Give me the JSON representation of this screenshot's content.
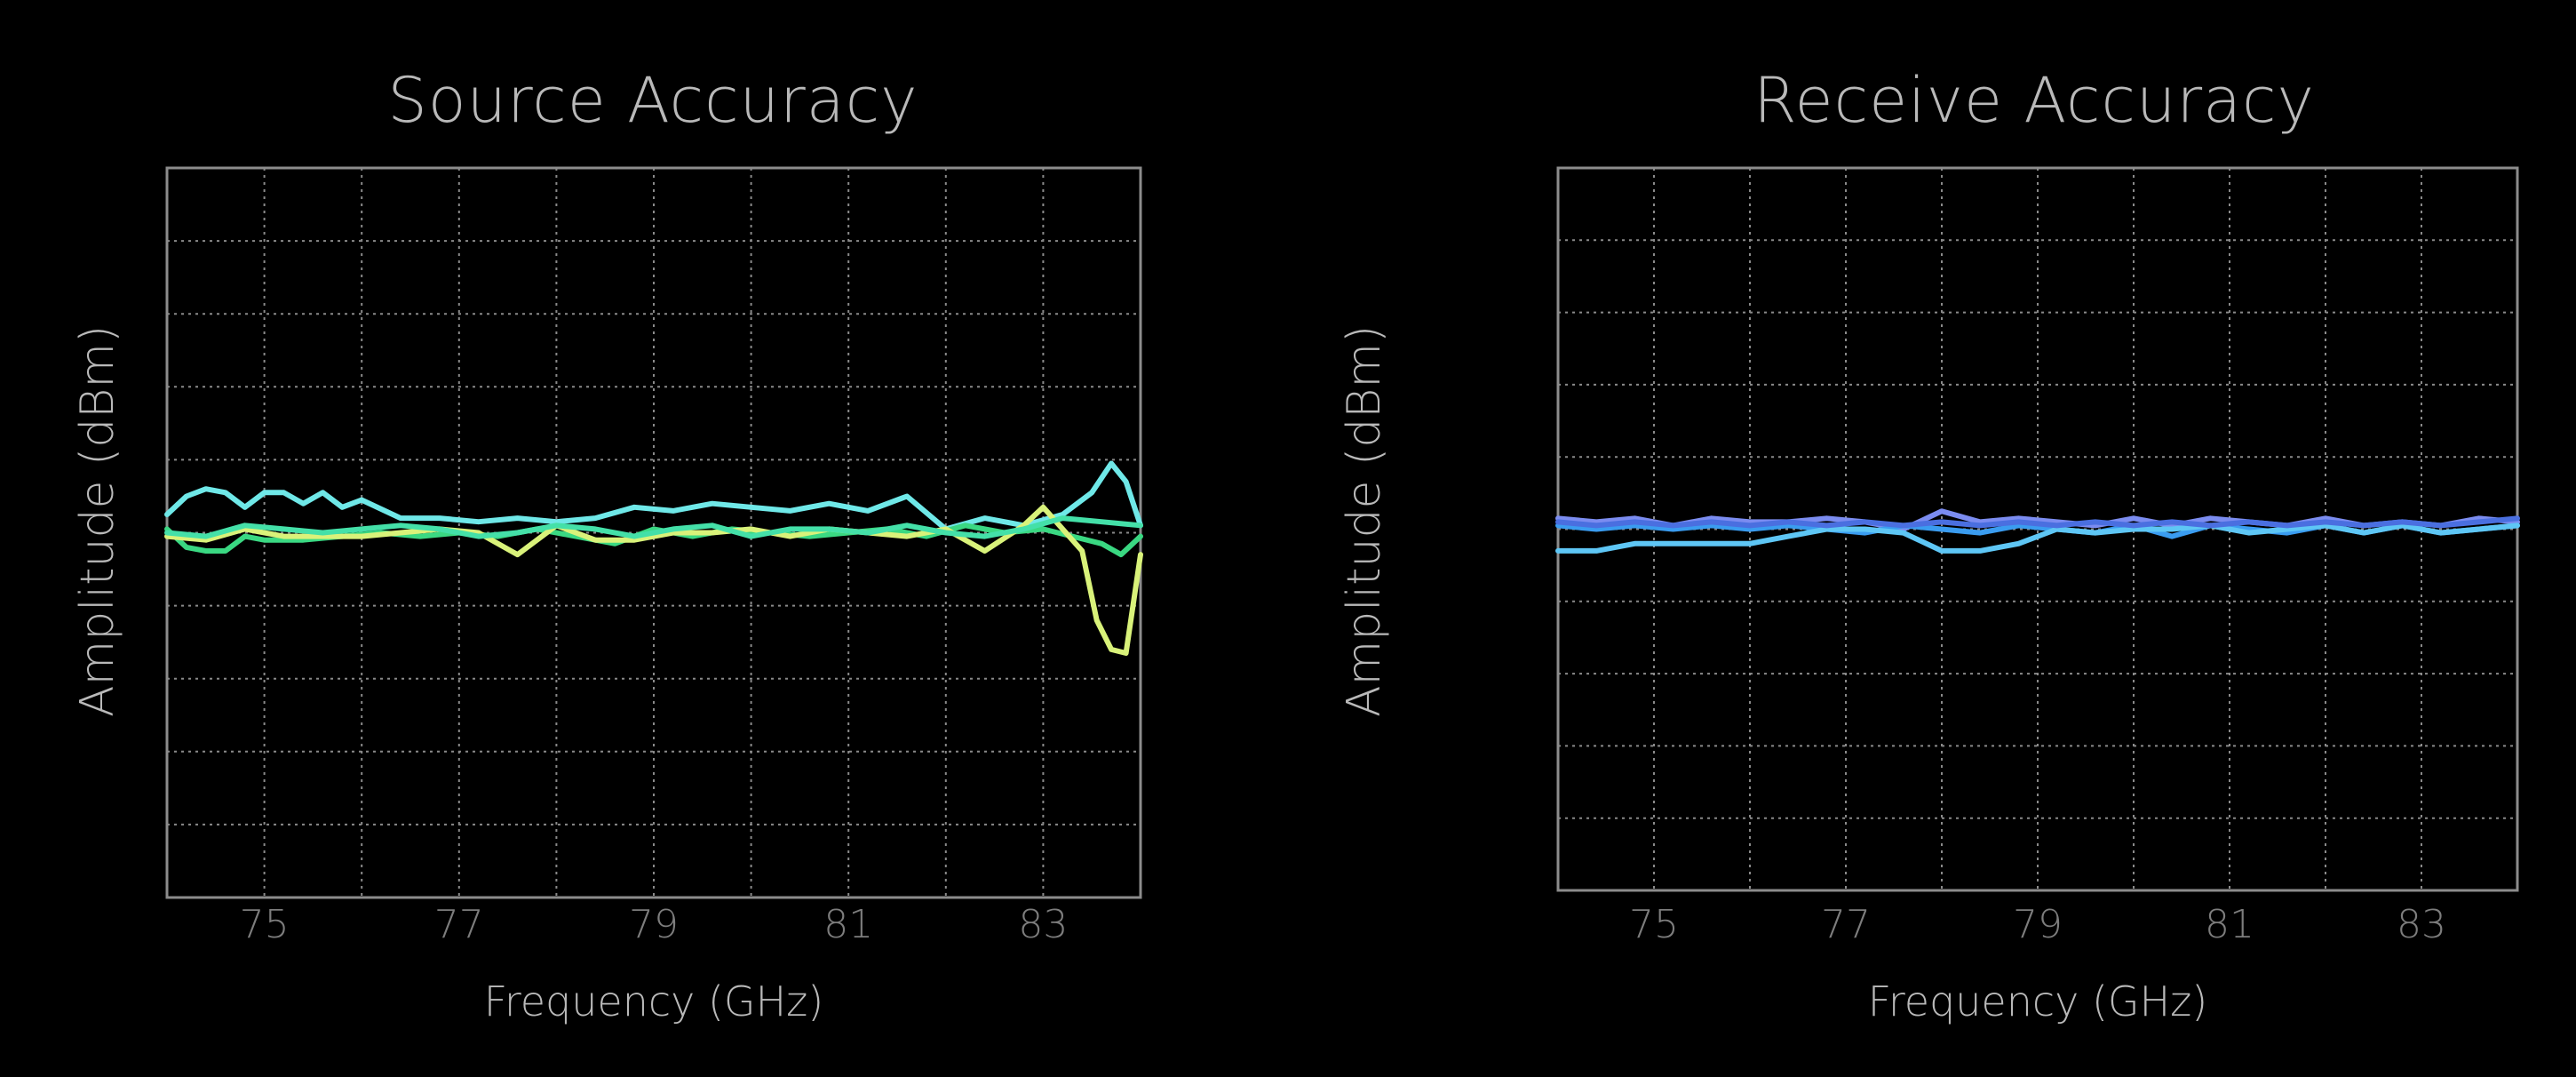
{
  "charts": [
    {
      "title": "Source Accuracy",
      "xlabel": "Frequency (GHz)",
      "ylabel": "Amplitude (dBm)"
    },
    {
      "title": "Receive Accuracy",
      "xlabel": "Frequency (GHz)",
      "ylabel": "Amplitude (dBm)"
    }
  ],
  "chart_data": [
    {
      "type": "line",
      "title": "Source Accuracy",
      "xlabel": "Frequency (GHz)",
      "ylabel": "Amplitude (dBm)",
      "xlim": [
        74,
        84
      ],
      "ylim": [
        -5,
        5
      ],
      "xticks": [
        75,
        77,
        79,
        81,
        83
      ],
      "grid": true,
      "colors": [
        "#6fe8e8",
        "#3ad882",
        "#d9f27a",
        "#44e0a8"
      ],
      "series": [
        {
          "x": [
            74,
            74.2,
            74.4,
            74.6,
            74.8,
            75,
            75.2,
            75.4,
            75.6,
            75.8,
            76,
            76.4,
            76.8,
            77.2,
            77.6,
            78,
            78.4,
            78.8,
            79.2,
            79.6,
            80,
            80.4,
            80.8,
            81.2,
            81.6,
            82,
            82.4,
            82.8,
            83.2,
            83.5,
            83.7,
            83.85,
            84
          ],
          "y": [
            0.25,
            0.5,
            0.6,
            0.55,
            0.35,
            0.55,
            0.55,
            0.4,
            0.55,
            0.35,
            0.45,
            0.2,
            0.2,
            0.15,
            0.2,
            0.15,
            0.2,
            0.35,
            0.3,
            0.4,
            0.35,
            0.3,
            0.4,
            0.3,
            0.5,
            0.05,
            0.2,
            0.1,
            0.25,
            0.55,
            0.95,
            0.7,
            0.1
          ]
        },
        {
          "x": [
            74,
            74.2,
            74.4,
            74.6,
            74.8,
            75,
            75.4,
            75.8,
            76.2,
            76.6,
            77,
            77.4,
            77.8,
            78.2,
            78.6,
            79,
            79.4,
            79.8,
            80.2,
            80.6,
            81,
            81.4,
            81.8,
            82.2,
            82.6,
            83,
            83.3,
            83.6,
            83.8,
            84
          ],
          "y": [
            0.05,
            -0.2,
            -0.25,
            -0.25,
            -0.05,
            -0.1,
            -0.1,
            -0.05,
            0,
            -0.05,
            0,
            -0.05,
            0.05,
            -0.05,
            -0.15,
            0.05,
            -0.05,
            0.05,
            0,
            -0.05,
            0,
            0.05,
            -0.05,
            0.1,
            0,
            0.05,
            -0.05,
            -0.15,
            -0.3,
            -0.05
          ]
        },
        {
          "x": [
            74,
            74.4,
            74.8,
            75.2,
            75.6,
            76,
            76.4,
            76.8,
            77.2,
            77.6,
            78,
            78.4,
            78.8,
            79.2,
            79.6,
            80,
            80.4,
            80.8,
            81.2,
            81.6,
            82,
            82.4,
            82.8,
            83,
            83.2,
            83.4,
            83.55,
            83.7,
            83.85,
            84
          ],
          "y": [
            -0.05,
            -0.1,
            0.05,
            -0.05,
            -0.05,
            -0.05,
            0,
            0.05,
            0,
            -0.3,
            0.1,
            -0.1,
            -0.1,
            0,
            0,
            0.05,
            -0.05,
            0.05,
            0,
            -0.05,
            0.05,
            -0.25,
            0.1,
            0.35,
            0.05,
            -0.25,
            -1.2,
            -1.6,
            -1.65,
            -0.3
          ]
        },
        {
          "x": [
            74,
            74.4,
            74.8,
            75.2,
            75.6,
            76,
            76.4,
            76.8,
            77.2,
            77.6,
            78,
            78.4,
            78.8,
            79.2,
            79.6,
            80,
            80.4,
            80.8,
            81.2,
            81.6,
            82,
            82.4,
            82.8,
            83.2,
            83.6,
            84
          ],
          "y": [
            0,
            -0.05,
            0.1,
            0.05,
            0,
            0.05,
            0.1,
            0.05,
            -0.05,
            0,
            0.1,
            0.05,
            -0.05,
            0.05,
            0.1,
            -0.05,
            0.05,
            0.05,
            0,
            0.1,
            0,
            -0.05,
            0.05,
            0.2,
            0.15,
            0.1
          ]
        }
      ]
    },
    {
      "type": "line",
      "title": "Receive Accuracy",
      "xlabel": "Frequency (GHz)",
      "ylabel": "Amplitude (dBm)",
      "xlim": [
        74,
        84
      ],
      "ylim": [
        -5,
        5
      ],
      "xticks": [
        75,
        77,
        79,
        81,
        83
      ],
      "grid": true,
      "colors": [
        "#7b8cf0",
        "#3a9cf0",
        "#5ec6f5",
        "#4a6fe0"
      ],
      "series": [
        {
          "x": [
            74,
            74.4,
            74.8,
            75.2,
            75.6,
            76,
            76.4,
            76.8,
            77.2,
            77.6,
            78,
            78.4,
            78.8,
            79.2,
            79.6,
            80,
            80.4,
            80.8,
            81.2,
            81.6,
            82,
            82.4,
            82.8,
            83.2,
            83.6,
            84
          ],
          "y": [
            0.15,
            0.1,
            0.15,
            0.05,
            0.15,
            0.1,
            0.1,
            0.15,
            0.1,
            0,
            0.25,
            0.1,
            0.15,
            0.1,
            0.05,
            0.15,
            0.05,
            0.15,
            0.1,
            0.05,
            0.15,
            0.05,
            0.1,
            0.05,
            0.15,
            0.1
          ]
        },
        {
          "x": [
            74,
            74.4,
            74.8,
            75.2,
            75.6,
            76,
            76.4,
            76.8,
            77.2,
            77.6,
            78,
            78.4,
            78.8,
            79.2,
            79.6,
            80,
            80.4,
            80.8,
            81.2,
            81.6,
            82,
            82.4,
            82.8,
            83.2,
            83.6,
            84
          ],
          "y": [
            0.05,
            0,
            0.05,
            0,
            0.05,
            0,
            0.05,
            0,
            -0.05,
            0.05,
            0,
            -0.05,
            0.05,
            0,
            -0.05,
            0.05,
            -0.1,
            0.05,
            0,
            -0.05,
            0.05,
            -0.05,
            0.05,
            -0.05,
            0,
            0.05
          ]
        },
        {
          "x": [
            74,
            74.4,
            74.8,
            75.2,
            75.6,
            76,
            76.4,
            76.8,
            77.2,
            77.6,
            78,
            78.4,
            78.8,
            79.2,
            79.6,
            80,
            80.4,
            80.8,
            81.2,
            81.6,
            82,
            82.4,
            82.8,
            83.2,
            83.6,
            84
          ],
          "y": [
            -0.3,
            -0.3,
            -0.2,
            -0.2,
            -0.2,
            -0.2,
            -0.1,
            0,
            0,
            -0.05,
            -0.3,
            -0.3,
            -0.2,
            0,
            -0.05,
            0,
            0,
            0.05,
            -0.05,
            0,
            0.05,
            -0.05,
            0.05,
            -0.05,
            0,
            0.05
          ]
        },
        {
          "x": [
            74,
            74.4,
            74.8,
            75.2,
            75.6,
            76,
            76.4,
            76.8,
            77.2,
            77.6,
            78,
            78.4,
            78.8,
            79.2,
            79.6,
            80,
            80.4,
            80.8,
            81.2,
            81.6,
            82,
            82.4,
            82.8,
            83.2,
            83.6,
            84
          ],
          "y": [
            0.1,
            0.05,
            0.1,
            0.05,
            0.1,
            0.05,
            0.1,
            0.05,
            0.1,
            0.05,
            0.1,
            0.05,
            0.1,
            0.05,
            0.1,
            0.05,
            0.1,
            0.05,
            0.1,
            0.05,
            0.1,
            0.05,
            0.1,
            0.05,
            0.1,
            0.15
          ]
        }
      ]
    }
  ]
}
